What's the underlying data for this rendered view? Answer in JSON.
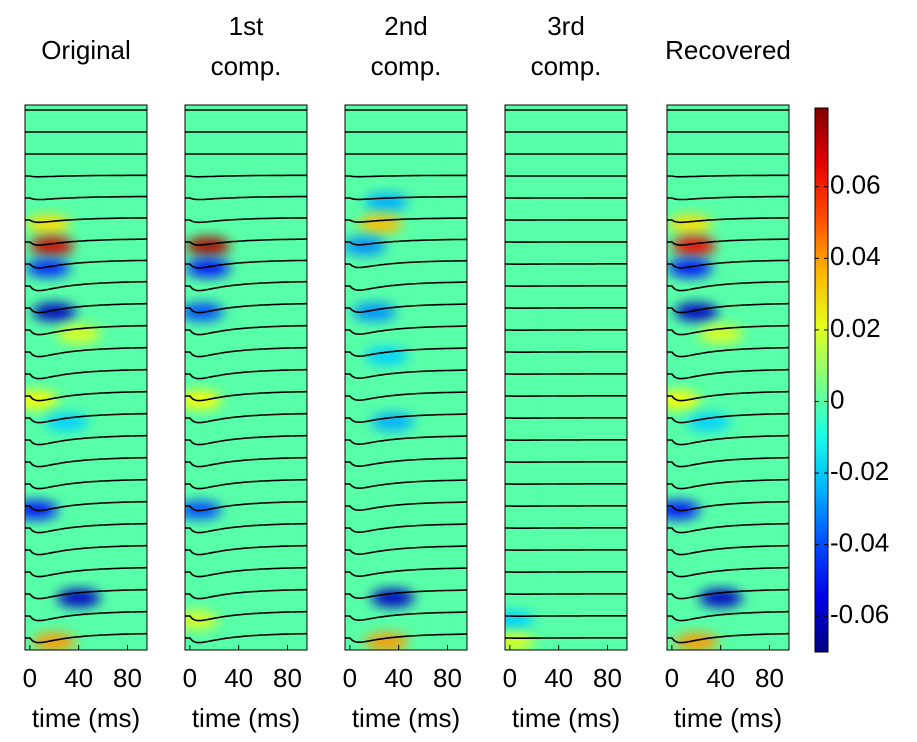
{
  "chart_data": [
    {
      "type": "heatmap",
      "title": [
        "Original"
      ],
      "xlabel": "time (ms)",
      "xlim": [
        -4,
        96
      ],
      "xticks": [
        0,
        40,
        80
      ],
      "blobs": [
        {
          "trace": 5,
          "t": 15,
          "value": 0.03
        },
        {
          "trace": 6,
          "t": 18,
          "value": 0.07
        },
        {
          "trace": 7,
          "t": 15,
          "value": -0.045
        },
        {
          "trace": 9,
          "t": 20,
          "value": -0.06
        },
        {
          "trace": 10,
          "t": 40,
          "value": 0.02
        },
        {
          "trace": 13,
          "t": 5,
          "value": 0.025
        },
        {
          "trace": 14,
          "t": 30,
          "value": -0.02
        },
        {
          "trace": 18,
          "t": 5,
          "value": -0.05
        },
        {
          "trace": 22,
          "t": 40,
          "value": -0.06
        },
        {
          "trace": 24,
          "t": 20,
          "value": 0.04
        }
      ]
    },
    {
      "type": "heatmap",
      "title": [
        "1st",
        "comp."
      ],
      "xlabel": "time (ms)",
      "xlim": [
        -4,
        96
      ],
      "xticks": [
        0,
        40,
        80
      ],
      "blobs": [
        {
          "trace": 6,
          "t": 15,
          "value": 0.075
        },
        {
          "trace": 7,
          "t": 15,
          "value": -0.05
        },
        {
          "trace": 9,
          "t": 10,
          "value": -0.04
        },
        {
          "trace": 13,
          "t": 8,
          "value": 0.025
        },
        {
          "trace": 18,
          "t": 8,
          "value": -0.04
        },
        {
          "trace": 23,
          "t": 5,
          "value": 0.02
        }
      ]
    },
    {
      "type": "heatmap",
      "title": [
        "2nd",
        "comp."
      ],
      "xlabel": "time (ms)",
      "xlim": [
        -4,
        96
      ],
      "xticks": [
        0,
        40,
        80
      ],
      "blobs": [
        {
          "trace": 4,
          "t": 30,
          "value": -0.025
        },
        {
          "trace": 5,
          "t": 25,
          "value": 0.035
        },
        {
          "trace": 6,
          "t": 12,
          "value": -0.03
        },
        {
          "trace": 9,
          "t": 20,
          "value": -0.03
        },
        {
          "trace": 11,
          "t": 30,
          "value": -0.02
        },
        {
          "trace": 14,
          "t": 35,
          "value": -0.025
        },
        {
          "trace": 22,
          "t": 35,
          "value": -0.06
        },
        {
          "trace": 24,
          "t": 30,
          "value": 0.04
        }
      ]
    },
    {
      "type": "heatmap",
      "title": [
        "3rd",
        "comp."
      ],
      "xlabel": "time (ms)",
      "xlim": [
        -4,
        96
      ],
      "xticks": [
        0,
        40,
        80
      ],
      "blobs": [
        {
          "trace": 23,
          "t": 2,
          "value": -0.02
        },
        {
          "trace": 24,
          "t": 2,
          "value": 0.02
        }
      ]
    },
    {
      "type": "heatmap",
      "title": [
        "Recovered"
      ],
      "xlabel": "time (ms)",
      "xlim": [
        -4,
        96
      ],
      "xticks": [
        0,
        40,
        80
      ],
      "blobs": [
        {
          "trace": 5,
          "t": 15,
          "value": 0.03
        },
        {
          "trace": 6,
          "t": 18,
          "value": 0.065
        },
        {
          "trace": 7,
          "t": 15,
          "value": -0.05
        },
        {
          "trace": 9,
          "t": 20,
          "value": -0.06
        },
        {
          "trace": 10,
          "t": 40,
          "value": 0.02
        },
        {
          "trace": 13,
          "t": 5,
          "value": 0.025
        },
        {
          "trace": 14,
          "t": 30,
          "value": -0.02
        },
        {
          "trace": 18,
          "t": 5,
          "value": -0.05
        },
        {
          "trace": 22,
          "t": 40,
          "value": -0.06
        },
        {
          "trace": 24,
          "t": 20,
          "value": 0.04
        }
      ]
    },
    {
      "type": "colorbar",
      "clim": [
        -0.07,
        0.082
      ],
      "ticks": [
        -0.06,
        -0.04,
        -0.02,
        0,
        0.02,
        0.04,
        0.06
      ]
    }
  ]
}
